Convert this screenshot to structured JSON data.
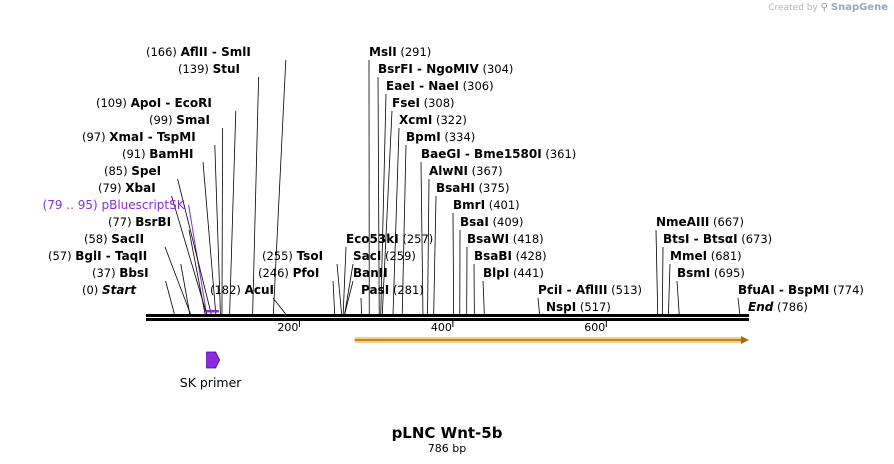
{
  "credit": {
    "prefix": "Created by",
    "brand": "SnapGene"
  },
  "map": {
    "title": "pLNC Wnt-5b",
    "length_label": "786 bp",
    "length_bp": 786,
    "ticks": [
      {
        "bp": 200,
        "label": "200"
      },
      {
        "bp": 400,
        "label": "400"
      },
      {
        "bp": 600,
        "label": "600"
      }
    ]
  },
  "sites": [
    {
      "id": "start",
      "site": 0,
      "row": 0,
      "pos": "(0)",
      "names": [
        "Start"
      ],
      "style": "end"
    },
    {
      "id": "bbsi",
      "site": 37,
      "row": 1,
      "pos": "(37)",
      "names": [
        "BbsI"
      ]
    },
    {
      "id": "bgli",
      "site": 57,
      "row": 2,
      "pos": "(57)",
      "names": [
        "BglI",
        "TaqII"
      ]
    },
    {
      "id": "sacii",
      "site": 58,
      "row": 3,
      "pos": "(58)",
      "names": [
        "SacII"
      ]
    },
    {
      "id": "bsrbi",
      "site": 77,
      "row": 4,
      "pos": "(77)",
      "names": [
        "BsrBI"
      ]
    },
    {
      "id": "pblue",
      "site": 79,
      "row": 5,
      "pos": "(79 .. 95)",
      "names": [
        "pBluescriptSK"
      ],
      "style": "feature"
    },
    {
      "id": "xbai",
      "site": 79,
      "row": 6,
      "pos": "(79)",
      "names": [
        "XbaI"
      ]
    },
    {
      "id": "spei",
      "site": 85,
      "row": 7,
      "pos": "(85)",
      "names": [
        "SpeI"
      ]
    },
    {
      "id": "bamhi",
      "site": 91,
      "row": 8,
      "pos": "(91)",
      "names": [
        "BamHI"
      ]
    },
    {
      "id": "xmai",
      "site": 97,
      "row": 9,
      "pos": "(97)",
      "names": [
        "XmaI",
        "TspMI"
      ]
    },
    {
      "id": "smai",
      "site": 99,
      "row": 10,
      "pos": "(99)",
      "names": [
        "SmaI"
      ]
    },
    {
      "id": "apoi",
      "site": 109,
      "row": 11,
      "pos": "(109)",
      "names": [
        "ApoI",
        "EcoRI"
      ]
    },
    {
      "id": "stui",
      "site": 139,
      "row": 13,
      "pos": "(139)",
      "names": [
        "StuI"
      ]
    },
    {
      "id": "aflii",
      "site": 166,
      "row": 14,
      "pos": "(166)",
      "names": [
        "AflII",
        "SmlI"
      ]
    },
    {
      "id": "acui",
      "site": 182,
      "row": 0,
      "pos": "(182)",
      "names": [
        "AcuI"
      ],
      "pos_first": true
    },
    {
      "id": "pfoi",
      "site": 246,
      "row": 1,
      "pos": "(246)",
      "names": [
        "PfoI"
      ],
      "pos_first": true
    },
    {
      "id": "tsoi",
      "site": 255,
      "row": 2,
      "pos": "(255)",
      "names": [
        "TsoI"
      ],
      "pos_first": true
    },
    {
      "id": "pasi",
      "site": 281,
      "row": 0,
      "pos": "(281)",
      "names": [
        "PasI"
      ]
    },
    {
      "id": "banii",
      "site": 259,
      "row": 1,
      "pos": "",
      "names": [
        "BanII"
      ]
    },
    {
      "id": "saci",
      "site": 259,
      "row": 2,
      "pos": "(259)",
      "names": [
        "SacI"
      ]
    },
    {
      "id": "eco53ki",
      "site": 257,
      "row": 3,
      "pos": "(257)",
      "names": [
        "Eco53kI"
      ]
    },
    {
      "id": "msli",
      "site": 291,
      "row": 14,
      "pos": "(291)",
      "names": [
        "MslI"
      ]
    },
    {
      "id": "bsrfi",
      "site": 304,
      "row": 13,
      "pos": "(304)",
      "names": [
        "BsrFI",
        "NgoMIV"
      ]
    },
    {
      "id": "eaei",
      "site": 306,
      "row": 12,
      "pos": "(306)",
      "names": [
        "EaeI",
        "NaeI"
      ]
    },
    {
      "id": "fsei",
      "site": 308,
      "row": 11,
      "pos": "(308)",
      "names": [
        "FseI"
      ]
    },
    {
      "id": "xcmi",
      "site": 322,
      "row": 10,
      "pos": "(322)",
      "names": [
        "XcmI"
      ]
    },
    {
      "id": "bpmi",
      "site": 334,
      "row": 9,
      "pos": "(334)",
      "names": [
        "BpmI"
      ]
    },
    {
      "id": "baegi",
      "site": 361,
      "row": 8,
      "pos": "(361)",
      "names": [
        "BaeGI",
        "Bme1580I"
      ]
    },
    {
      "id": "alwni",
      "site": 367,
      "row": 7,
      "pos": "(367)",
      "names": [
        "AlwNI"
      ]
    },
    {
      "id": "bsahi",
      "site": 375,
      "row": 6,
      "pos": "(375)",
      "names": [
        "BsaHI"
      ]
    },
    {
      "id": "bmri",
      "site": 401,
      "row": 5,
      "pos": "(401)",
      "names": [
        "BmrI"
      ]
    },
    {
      "id": "bsai",
      "site": 409,
      "row": 4,
      "pos": "(409)",
      "names": [
        "BsaI"
      ]
    },
    {
      "id": "bsawi",
      "site": 418,
      "row": 3,
      "pos": "(418)",
      "names": [
        "BsaWI"
      ]
    },
    {
      "id": "bsabi",
      "site": 428,
      "row": 2,
      "pos": "(428)",
      "names": [
        "BsaBI"
      ]
    },
    {
      "id": "blpi",
      "site": 441,
      "row": 1,
      "pos": "(441)",
      "names": [
        "BlpI"
      ]
    },
    {
      "id": "pcii",
      "site": 513,
      "row": 0,
      "pos": "(513)",
      "names": [
        "PciI",
        "AflIII"
      ]
    },
    {
      "id": "nspi",
      "site": 517,
      "row": -1,
      "pos": "(517)",
      "names": [
        "NspI"
      ]
    },
    {
      "id": "nmeaiii",
      "site": 667,
      "row": 4,
      "pos": "(667)",
      "names": [
        "NmeAIII"
      ]
    },
    {
      "id": "btsi",
      "site": 673,
      "row": 3,
      "pos": "(673)",
      "names": [
        "BtsI",
        "BtsαI"
      ]
    },
    {
      "id": "mmei",
      "site": 681,
      "row": 2,
      "pos": "(681)",
      "names": [
        "MmeI"
      ]
    },
    {
      "id": "bsmi",
      "site": 695,
      "row": 1,
      "pos": "(695)",
      "names": [
        "BsmI"
      ]
    },
    {
      "id": "bfuai",
      "site": 774,
      "row": 0,
      "pos": "(774)",
      "names": [
        "BfuAI",
        "BspMI"
      ]
    },
    {
      "id": "end",
      "site": 786,
      "row": -1,
      "pos": "(786)",
      "names": [
        "End"
      ],
      "style": "end"
    }
  ],
  "features": [
    {
      "id": "orf",
      "type": "orf",
      "start": 272,
      "end": 786,
      "label": ""
    },
    {
      "id": "pbluescript-bar",
      "type": "misc",
      "start": 79,
      "end": 95,
      "label": "",
      "color": "#8a2be2"
    },
    {
      "id": "sk-primer",
      "type": "primer",
      "start": 79,
      "end": 95,
      "label": "SK primer",
      "color": "#8a2be2"
    }
  ]
}
